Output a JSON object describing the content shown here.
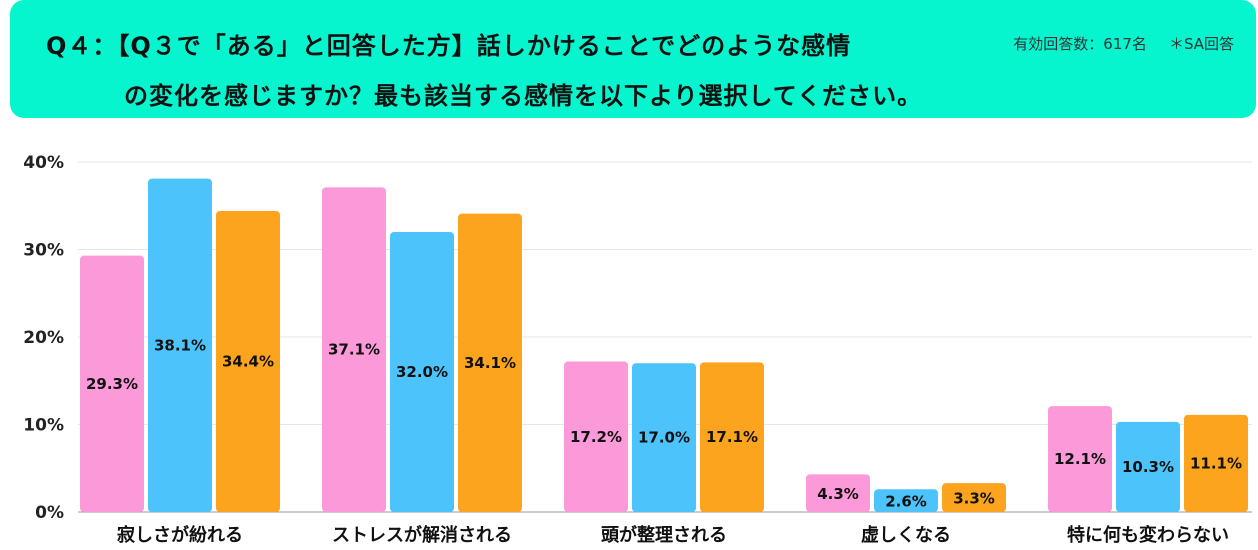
{
  "header": {
    "question_line1": "Q４：【Q３で「ある」と回答した方】話しかけることでどのような感情",
    "question_line2": "の変化を感じますか？最も該当する感情を以下より選択してください。",
    "respondents": "有効回答数：617名",
    "answer_type": "＊SA回答"
  },
  "chart_data": {
    "type": "bar",
    "categories": [
      "寂しさが紛れる",
      "ストレスが解消される",
      "頭が整理される",
      "虚しくなる",
      "特に何も変わらない"
    ],
    "series": [
      {
        "color": "#fc99d8",
        "values": [
          29.3,
          37.1,
          17.2,
          4.3,
          12.1
        ],
        "labels": [
          "29.3%",
          "37.1%",
          "17.2%",
          "4.3%",
          "12.1%"
        ]
      },
      {
        "color": "#4cc4fb",
        "values": [
          38.1,
          32.0,
          17.0,
          2.6,
          10.3
        ],
        "labels": [
          "38.1%",
          "32.0%",
          "17.0%",
          "2.6%",
          "10.3%"
        ]
      },
      {
        "color": "#fca41e",
        "values": [
          34.4,
          34.1,
          17.1,
          3.3,
          11.1
        ],
        "labels": [
          "34.4%",
          "34.1%",
          "17.1%",
          "3.3%",
          "11.1%"
        ]
      }
    ],
    "yticks": [
      "0%",
      "10%",
      "20%",
      "30%",
      "40%"
    ],
    "ylim": [
      0,
      40
    ],
    "grid": true,
    "legend": "none"
  }
}
